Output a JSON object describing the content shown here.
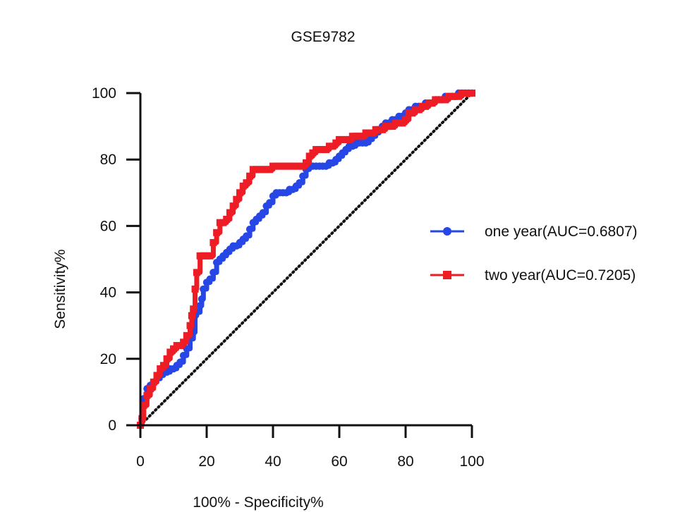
{
  "chart_data": {
    "type": "line",
    "title": "GSE9782",
    "xlabel": "100% - Specificity%",
    "ylabel": "Sensitivity%",
    "xlim": [
      0,
      100
    ],
    "ylim": [
      0,
      100
    ],
    "xticks": [
      0,
      20,
      40,
      60,
      80,
      100
    ],
    "yticks": [
      0,
      20,
      40,
      60,
      80,
      100
    ],
    "x_tick_labels": [
      "0",
      "20",
      "40",
      "60",
      "80",
      "100"
    ],
    "y_tick_labels": [
      "0",
      "20",
      "40",
      "60",
      "80",
      "100"
    ],
    "grid": false,
    "legend_position": "right",
    "reference_line": {
      "name": "chance",
      "x": [
        0,
        100
      ],
      "y": [
        0,
        100
      ],
      "style": "dotted",
      "color": "#111111"
    },
    "series": [
      {
        "name": "one year(AUC=0.6807)",
        "color": "#2646e6",
        "marker": "circle",
        "x": [
          0,
          0.5,
          1,
          2,
          3,
          4,
          5,
          6,
          7,
          8,
          9,
          10,
          11,
          12,
          13,
          14,
          15,
          16,
          16.5,
          17,
          18,
          18.5,
          19,
          20,
          21,
          22,
          23,
          24,
          25,
          26,
          27,
          28,
          29,
          30,
          31,
          32,
          33,
          34,
          35,
          36,
          37,
          38,
          39,
          40,
          41,
          42,
          43,
          44,
          45,
          46,
          47,
          48,
          49,
          50,
          51,
          52,
          53,
          54,
          55,
          56,
          57,
          58,
          59,
          60,
          61,
          62,
          63,
          64,
          65,
          66,
          67,
          68,
          69,
          70,
          71,
          72,
          73,
          74,
          75,
          76,
          77,
          78,
          79,
          80,
          81,
          82,
          83,
          84,
          85,
          86,
          87,
          88,
          89,
          90,
          91,
          92,
          93,
          94,
          95,
          96,
          97,
          98,
          99,
          100
        ],
        "y": [
          0,
          2,
          8,
          11,
          12,
          13,
          14,
          15,
          16,
          16,
          17,
          17,
          18,
          19,
          21,
          23,
          26,
          28,
          33,
          34,
          36,
          38,
          41,
          43,
          44,
          46,
          49,
          50,
          51,
          52,
          53,
          54,
          54,
          55,
          56,
          57,
          59,
          61,
          62,
          63,
          64,
          66,
          67,
          69,
          70,
          70,
          70,
          70,
          71,
          71,
          72,
          73,
          75,
          77,
          78,
          78,
          78,
          78,
          78,
          78,
          79,
          79,
          80,
          81,
          82,
          83,
          84,
          84,
          85,
          85,
          85,
          85,
          86,
          87,
          88,
          89,
          90,
          91,
          91,
          92,
          92,
          93,
          93,
          94,
          95,
          95,
          96,
          96,
          96,
          97,
          97,
          97,
          98,
          98,
          98,
          99,
          99,
          99,
          99,
          100,
          100,
          100,
          100,
          100
        ]
      },
      {
        "name": "two year(AUC=0.7205)",
        "color": "#ee1c25",
        "marker": "square",
        "x": [
          0,
          0.5,
          1,
          2,
          3,
          4,
          5,
          6,
          7,
          8,
          9,
          10,
          11,
          12,
          13,
          14,
          15,
          15.5,
          16,
          16.5,
          17,
          18,
          19,
          20,
          21,
          22,
          23,
          24,
          25,
          26,
          27,
          28,
          29,
          30,
          31,
          32,
          33,
          34,
          35,
          36,
          37,
          38,
          39,
          40,
          41,
          42,
          43,
          44,
          45,
          46,
          47,
          48,
          49,
          50,
          51,
          52,
          53,
          54,
          55,
          56,
          57,
          58,
          59,
          60,
          61,
          62,
          63,
          64,
          65,
          66,
          67,
          68,
          69,
          70,
          71,
          72,
          73,
          74,
          75,
          76,
          77,
          78,
          79,
          80,
          81,
          82,
          83,
          84,
          85,
          86,
          87,
          88,
          89,
          90,
          91,
          92,
          93,
          94,
          95,
          96,
          97,
          98,
          99,
          100
        ],
        "y": [
          0,
          2,
          6,
          9,
          11,
          13,
          15,
          17,
          18,
          20,
          22,
          23,
          24,
          24,
          25,
          27,
          30,
          33,
          35,
          41,
          46,
          51,
          51,
          51,
          51,
          55,
          58,
          61,
          61,
          62,
          64,
          66,
          68,
          70,
          72,
          73,
          75,
          77,
          77,
          77,
          77,
          77,
          77,
          78,
          78,
          78,
          78,
          78,
          78,
          78,
          78,
          78,
          78,
          79,
          81,
          82,
          83,
          83,
          83,
          83,
          84,
          84,
          85,
          86,
          86,
          86,
          86,
          87,
          87,
          87,
          87,
          88,
          88,
          88,
          89,
          89,
          89,
          90,
          90,
          90,
          91,
          91,
          91,
          92,
          94,
          94,
          95,
          95,
          96,
          96,
          97,
          97,
          98,
          98,
          98,
          98,
          99,
          99,
          99,
          99,
          100,
          100,
          100,
          100
        ]
      }
    ]
  }
}
